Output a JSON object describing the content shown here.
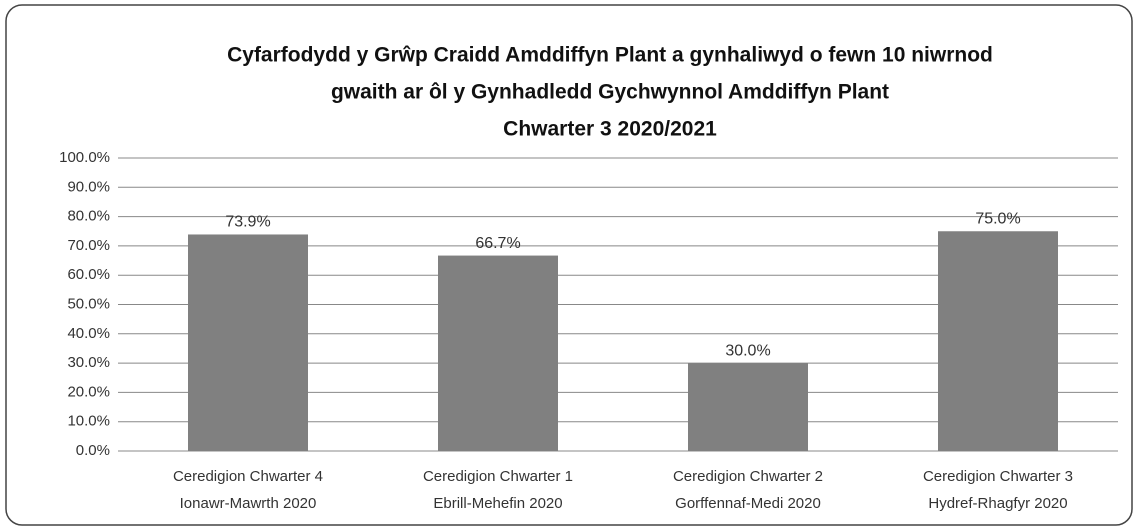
{
  "chart_data": {
    "type": "bar",
    "title": [
      "Cyfarfodydd y Grŵp Craidd Amddiffyn Plant a gynhaliwyd o fewn 10 niwrnod",
      "gwaith ar ôl y Gynhadledd Gychwynnol Amddiffyn Plant",
      "Chwarter 3  2020/2021"
    ],
    "categories": [
      [
        "Ceredigion Chwarter 4",
        "Ionawr-Mawrth 2020"
      ],
      [
        "Ceredigion Chwarter 1",
        "Ebrill-Mehefin 2020"
      ],
      [
        "Ceredigion Chwarter 2",
        "Gorffennaf-Medi 2020"
      ],
      [
        "Ceredigion Chwarter 3",
        "Hydref-Rhagfyr 2020"
      ]
    ],
    "values": [
      73.9,
      66.7,
      30.0,
      75.0
    ],
    "value_labels": [
      "73.9%",
      "66.7%",
      "30.0%",
      "75.0%"
    ],
    "color": "#808080",
    "ylim": [
      0,
      100
    ],
    "yticks": [
      {
        "value": 0,
        "label": "0.0%"
      },
      {
        "value": 10,
        "label": "10.0%"
      },
      {
        "value": 20,
        "label": "20.0%"
      },
      {
        "value": 30,
        "label": "30.0%"
      },
      {
        "value": 40,
        "label": "40.0%"
      },
      {
        "value": 50,
        "label": "50.0%"
      },
      {
        "value": 60,
        "label": "60.0%"
      },
      {
        "value": 70,
        "label": "70.0%"
      },
      {
        "value": 80,
        "label": "80.0%"
      },
      {
        "value": 90,
        "label": "90.0%"
      },
      {
        "value": 100,
        "label": "100.0%"
      }
    ],
    "grid": true
  }
}
